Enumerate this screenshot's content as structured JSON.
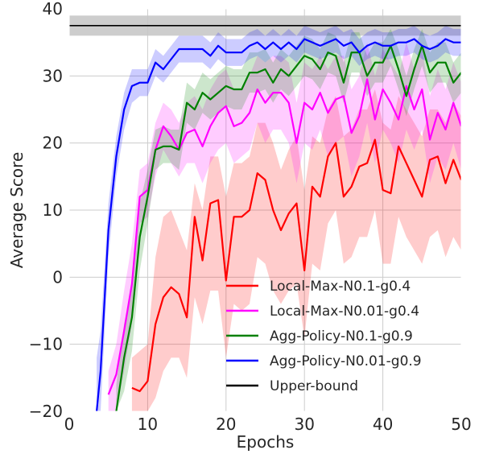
{
  "chart_data": {
    "type": "line",
    "title": "",
    "xlabel": "Epochs",
    "ylabel": "Average Score",
    "xlim": [
      0,
      50
    ],
    "ylim": [
      -20,
      40
    ],
    "xticks": [
      0,
      10,
      20,
      30,
      40,
      50
    ],
    "yticks": [
      -20,
      -10,
      0,
      10,
      20,
      30,
      40
    ],
    "grid": true,
    "legend_position": "lower-right",
    "upper_bound": {
      "name": "Upper-bound",
      "value": 37.5,
      "band": [
        36,
        39
      ],
      "color": "#000000",
      "band_color": "#c8c8c8"
    },
    "series": [
      {
        "name": "Local-Max-N0.1-g0.4",
        "color": "#ff0000",
        "x": [
          8,
          9,
          10,
          11,
          12,
          13,
          14,
          15,
          16,
          17,
          18,
          19,
          20,
          21,
          22,
          23,
          24,
          25,
          26,
          27,
          28,
          29,
          30,
          31,
          32,
          33,
          34,
          35,
          36,
          37,
          38,
          39,
          40,
          41,
          42,
          43,
          44,
          45,
          46,
          47,
          48,
          49,
          50
        ],
        "values": [
          -16.5,
          -17,
          -15.5,
          -7,
          -3,
          -1.5,
          -2.5,
          -6,
          9,
          2.5,
          11,
          11.5,
          -0.5,
          9,
          9,
          10,
          15.5,
          14.5,
          10,
          7,
          9.5,
          11,
          1,
          13.5,
          12,
          18,
          20,
          12,
          13.5,
          16.5,
          17,
          20.5,
          13,
          12.5,
          19.5,
          17,
          14.5,
          12,
          17.5,
          18,
          14,
          17.5,
          14.5
        ],
        "band": [
          [
            -20,
            -12
          ],
          [
            -20,
            -11
          ],
          [
            -20,
            -10
          ],
          [
            -18,
            3
          ],
          [
            -14,
            9
          ],
          [
            -12,
            10
          ],
          [
            -12,
            7
          ],
          [
            -15,
            4
          ],
          [
            -3,
            14
          ],
          [
            -7,
            10
          ],
          [
            -2,
            18
          ],
          [
            -2,
            18
          ],
          [
            -12,
            12
          ],
          [
            -4,
            17
          ],
          [
            -5,
            17
          ],
          [
            -4,
            18
          ],
          [
            3,
            23
          ],
          [
            2,
            23
          ],
          [
            -2,
            20
          ],
          [
            -4,
            16
          ],
          [
            -2,
            19
          ],
          [
            -1,
            21
          ],
          [
            -9,
            13
          ],
          [
            2,
            21
          ],
          [
            1,
            20
          ],
          [
            8,
            25
          ],
          [
            10,
            27
          ],
          [
            2,
            21
          ],
          [
            3,
            22
          ],
          [
            6,
            25
          ],
          [
            6,
            25
          ],
          [
            10,
            28
          ],
          [
            2,
            23
          ],
          [
            2,
            22
          ],
          [
            9,
            27
          ],
          [
            6,
            25
          ],
          [
            4,
            23
          ],
          [
            2,
            21
          ],
          [
            6,
            25
          ],
          [
            7,
            25
          ],
          [
            3,
            23
          ],
          [
            6,
            26
          ],
          [
            4,
            24
          ]
        ]
      },
      {
        "name": "Local-Max-N0.01-g0.4",
        "color": "#ff00ff",
        "x": [
          5,
          6,
          7,
          8,
          9,
          10,
          11,
          12,
          13,
          14,
          15,
          16,
          17,
          18,
          19,
          20,
          21,
          22,
          23,
          24,
          25,
          26,
          27,
          28,
          29,
          30,
          31,
          32,
          33,
          34,
          35,
          36,
          37,
          38,
          39,
          40,
          41,
          42,
          43,
          44,
          45,
          46,
          47,
          48,
          49,
          50
        ],
        "values": [
          -17.5,
          -14.5,
          -8,
          -1,
          12,
          13,
          19,
          22.5,
          21,
          19,
          21.5,
          22,
          19.5,
          22.5,
          24.5,
          25.5,
          22.5,
          23,
          24.5,
          28,
          26,
          27.5,
          27.5,
          26,
          20,
          26,
          25,
          27.5,
          24.5,
          26.5,
          27,
          21.5,
          24,
          29.5,
          23.5,
          28,
          26,
          23.5,
          28.5,
          25,
          28,
          20.5,
          24.5,
          22,
          26,
          22.5
        ],
        "band": [
          [
            -20,
            -14
          ],
          [
            -20,
            -10
          ],
          [
            -14,
            -2
          ],
          [
            -7,
            5
          ],
          [
            8,
            16
          ],
          [
            9,
            17
          ],
          [
            15,
            23
          ],
          [
            19,
            26
          ],
          [
            17,
            25
          ],
          [
            15,
            23
          ],
          [
            17,
            26
          ],
          [
            17,
            27
          ],
          [
            14,
            25
          ],
          [
            17,
            28
          ],
          [
            19,
            30
          ],
          [
            20,
            31
          ],
          [
            17,
            28
          ],
          [
            18,
            28
          ],
          [
            19,
            30
          ],
          [
            23,
            33
          ],
          [
            20,
            32
          ],
          [
            22,
            33
          ],
          [
            22,
            33
          ],
          [
            20,
            32
          ],
          [
            14,
            26
          ],
          [
            20,
            32
          ],
          [
            19,
            31
          ],
          [
            22,
            33
          ],
          [
            18,
            31
          ],
          [
            20,
            33
          ],
          [
            21,
            33
          ],
          [
            15,
            28
          ],
          [
            18,
            30
          ],
          [
            23,
            35
          ],
          [
            17,
            30
          ],
          [
            22,
            34
          ],
          [
            20,
            32
          ],
          [
            17,
            30
          ],
          [
            22,
            35
          ],
          [
            19,
            31
          ],
          [
            22,
            34
          ],
          [
            14,
            27
          ],
          [
            18,
            31
          ],
          [
            16,
            28
          ],
          [
            20,
            32
          ],
          [
            16,
            29
          ]
        ]
      },
      {
        "name": "Agg-Policy-N0.1-g0.9",
        "color": "#008000",
        "x": [
          6,
          7,
          8,
          9,
          10,
          11,
          12,
          13,
          14,
          15,
          16,
          17,
          18,
          19,
          20,
          21,
          22,
          23,
          24,
          25,
          26,
          27,
          28,
          29,
          30,
          31,
          32,
          33,
          34,
          35,
          36,
          37,
          38,
          39,
          40,
          41,
          42,
          43,
          44,
          45,
          46,
          47,
          48,
          49,
          50
        ],
        "values": [
          -20,
          -12,
          -6,
          6,
          12,
          19,
          19.5,
          19.5,
          19,
          26,
          25,
          27.5,
          26.5,
          27.5,
          28.5,
          28,
          28,
          30.5,
          30.5,
          31,
          29,
          31,
          30,
          31.5,
          33,
          32.5,
          31,
          33.5,
          33,
          29,
          33.5,
          33.5,
          30,
          32,
          32,
          34.5,
          31,
          27,
          31,
          34.5,
          30.5,
          32,
          32,
          29,
          30.5
        ],
        "band": [
          [
            -20,
            -16
          ],
          [
            -17,
            -7
          ],
          [
            -11,
            -1
          ],
          [
            1,
            11
          ],
          [
            8,
            16
          ],
          [
            16,
            22
          ],
          [
            17,
            22.5
          ],
          [
            17,
            22
          ],
          [
            16,
            22
          ],
          [
            23,
            29
          ],
          [
            22,
            28
          ],
          [
            24.5,
            30.5
          ],
          [
            23.5,
            29.5
          ],
          [
            24.5,
            30.5
          ],
          [
            25.5,
            31.5
          ],
          [
            25,
            31
          ],
          [
            25,
            31
          ],
          [
            27.5,
            33.5
          ],
          [
            27.5,
            33.5
          ],
          [
            28,
            34
          ],
          [
            26,
            32
          ],
          [
            28,
            34
          ],
          [
            27,
            33
          ],
          [
            28.5,
            34.5
          ],
          [
            30,
            36
          ],
          [
            29.5,
            35.5
          ],
          [
            28,
            34
          ],
          [
            30.5,
            36.5
          ],
          [
            30,
            36
          ],
          [
            26,
            32
          ],
          [
            30.5,
            36.5
          ],
          [
            30.5,
            36.5
          ],
          [
            27,
            33
          ],
          [
            29,
            35
          ],
          [
            29,
            35
          ],
          [
            31.5,
            37
          ],
          [
            28,
            34
          ],
          [
            24,
            30
          ],
          [
            28,
            34
          ],
          [
            31.5,
            37
          ],
          [
            27.5,
            33.5
          ],
          [
            29,
            35
          ],
          [
            29,
            35
          ],
          [
            26,
            32
          ],
          [
            27.5,
            33.5
          ]
        ]
      },
      {
        "name": "Agg-Policy-N0.01-g0.9",
        "color": "#0000ff",
        "x": [
          3.5,
          4,
          5,
          6,
          7,
          8,
          9,
          10,
          11,
          12,
          13,
          14,
          15,
          16,
          17,
          18,
          19,
          20,
          21,
          22,
          23,
          24,
          25,
          26,
          27,
          28,
          29,
          30,
          31,
          32,
          33,
          34,
          35,
          36,
          37,
          38,
          39,
          40,
          41,
          42,
          43,
          44,
          45,
          46,
          47,
          48,
          49,
          50
        ],
        "values": [
          -20,
          -14,
          7,
          18,
          25,
          28.5,
          29,
          29,
          32,
          31,
          32.5,
          34,
          34,
          34,
          34,
          33,
          34.5,
          33.5,
          33.5,
          33.5,
          34.5,
          35,
          34,
          35,
          34,
          35,
          34,
          35.5,
          35,
          34.5,
          35,
          35.5,
          34.5,
          35,
          33.5,
          34.5,
          35,
          34.5,
          34.5,
          35,
          35,
          35.5,
          34.5,
          34,
          34.5,
          35.5,
          35,
          35
        ],
        "band": [
          [
            -20,
            -12
          ],
          [
            -20,
            -8
          ],
          [
            3,
            11
          ],
          [
            15,
            21
          ],
          [
            22,
            27.5
          ],
          [
            26,
            31
          ],
          [
            27,
            31
          ],
          [
            27,
            31
          ],
          [
            30,
            34
          ],
          [
            29,
            33
          ],
          [
            30.5,
            34.5
          ],
          [
            32,
            36
          ],
          [
            32,
            36
          ],
          [
            32,
            36
          ],
          [
            32,
            36
          ],
          [
            31,
            35
          ],
          [
            32.5,
            36.5
          ],
          [
            31.5,
            35.5
          ],
          [
            31.5,
            35.5
          ],
          [
            31.5,
            35.5
          ],
          [
            32.5,
            36.5
          ],
          [
            33,
            37
          ],
          [
            32,
            36
          ],
          [
            33,
            37
          ],
          [
            32,
            36
          ],
          [
            33,
            37
          ],
          [
            32,
            36
          ],
          [
            33.5,
            37.5
          ],
          [
            33,
            37
          ],
          [
            32.5,
            36.5
          ],
          [
            33,
            37
          ],
          [
            33.5,
            37.5
          ],
          [
            32.5,
            36.5
          ],
          [
            33,
            37
          ],
          [
            31.5,
            35.5
          ],
          [
            32.5,
            36.5
          ],
          [
            33,
            37
          ],
          [
            32.5,
            36.5
          ],
          [
            32.5,
            36.5
          ],
          [
            33,
            37
          ],
          [
            33,
            37
          ],
          [
            33.5,
            37.5
          ],
          [
            32.5,
            36.5
          ],
          [
            32,
            36
          ],
          [
            32.5,
            36.5
          ],
          [
            33.5,
            37.5
          ],
          [
            33,
            37
          ],
          [
            33,
            37
          ]
        ]
      }
    ]
  }
}
